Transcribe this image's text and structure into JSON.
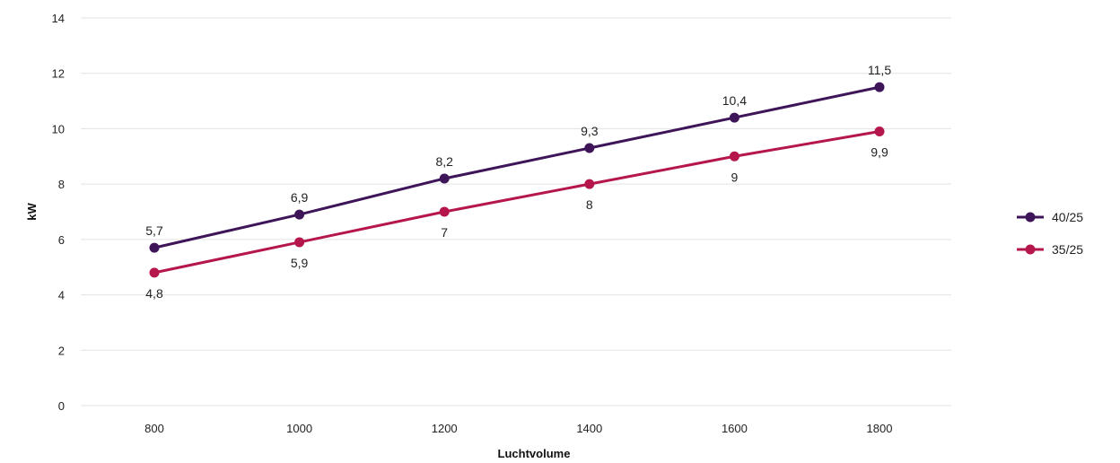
{
  "chart_data": {
    "type": "line",
    "x": [
      800,
      1000,
      1200,
      1400,
      1600,
      1800
    ],
    "x_tick_labels": [
      "800",
      "1000",
      "1200",
      "1400",
      "1600",
      "1800"
    ],
    "y_ticks": [
      0,
      2,
      4,
      6,
      8,
      10,
      12,
      14
    ],
    "y_tick_labels": [
      "0",
      "2",
      "4",
      "6",
      "8",
      "10",
      "12",
      "14"
    ],
    "ylim": [
      0,
      14
    ],
    "xlabel": "Luchtvolume",
    "ylabel": "kW",
    "grid": true,
    "legend_position": "right",
    "series": [
      {
        "name": "40/25",
        "color": "#3d1558",
        "values": [
          5.7,
          6.9,
          8.2,
          9.3,
          10.4,
          11.5
        ],
        "labels": [
          "5,7",
          "6,9",
          "8,2",
          "9,3",
          "10,4",
          "11,5"
        ],
        "label_side": "above"
      },
      {
        "name": "35/25",
        "color": "#b5164c",
        "values": [
          4.8,
          5.9,
          7,
          8,
          9,
          9.9
        ],
        "labels": [
          "4,8",
          "5,9",
          "7",
          "8",
          "9",
          "9,9"
        ],
        "label_side": "below"
      }
    ]
  }
}
